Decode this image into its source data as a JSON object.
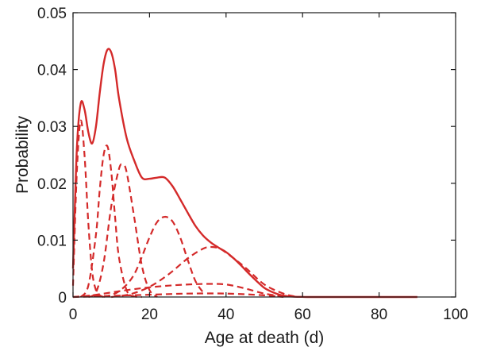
{
  "chart_data": {
    "type": "line",
    "xlabel": "Age at death (d)",
    "ylabel": "Probability",
    "xlim": [
      0,
      100
    ],
    "ylim": [
      0,
      0.05
    ],
    "xticks": [
      0,
      20,
      40,
      60,
      80,
      100
    ],
    "xtick_labels": [
      "0",
      "20",
      "40",
      "60",
      "80",
      "100"
    ],
    "yticks": [
      0,
      0.01,
      0.02,
      0.03,
      0.04,
      0.05
    ],
    "ytick_labels": [
      "0",
      "0.01",
      "0.02",
      "0.03",
      "0.04",
      "0.05"
    ],
    "grid": false,
    "line_color": "#d42a2a",
    "series": [
      {
        "style": "solid",
        "x": [
          0,
          1,
          2,
          3,
          4,
          5,
          6,
          7,
          8,
          9,
          10,
          11,
          12,
          14,
          16,
          18,
          20,
          22,
          24,
          26,
          28,
          30,
          32,
          34,
          36,
          38,
          40,
          42,
          44,
          46,
          48,
          50,
          52,
          54,
          56,
          58,
          60,
          62,
          65,
          70,
          80,
          90
        ],
        "y": [
          0.005,
          0.026,
          0.034,
          0.033,
          0.029,
          0.027,
          0.03,
          0.036,
          0.041,
          0.0435,
          0.043,
          0.04,
          0.035,
          0.028,
          0.024,
          0.021,
          0.0208,
          0.021,
          0.021,
          0.0195,
          0.0172,
          0.0148,
          0.0125,
          0.0108,
          0.0096,
          0.0087,
          0.0079,
          0.0068,
          0.0055,
          0.0041,
          0.0028,
          0.0016,
          0.0009,
          0.0004,
          0.00015,
          5e-05,
          2e-05,
          0.0,
          0.0,
          0.0,
          0.0,
          0.0
        ]
      },
      {
        "style": "dashed",
        "x": [
          0,
          1,
          2,
          3,
          4,
          5,
          6,
          7,
          8
        ],
        "y": [
          0.002,
          0.022,
          0.031,
          0.025,
          0.013,
          0.0045,
          0.0012,
          0.0003,
          0.0
        ]
      },
      {
        "style": "dashed",
        "x": [
          2,
          4,
          6,
          7,
          8,
          9,
          10,
          11,
          12,
          14,
          16,
          18
        ],
        "y": [
          0.0,
          0.002,
          0.011,
          0.019,
          0.025,
          0.0265,
          0.022,
          0.014,
          0.007,
          0.0012,
          0.0001,
          0.0
        ]
      },
      {
        "style": "dashed",
        "x": [
          4,
          6,
          8,
          10,
          12,
          13,
          14,
          16,
          18,
          20,
          22
        ],
        "y": [
          0.0,
          0.0008,
          0.006,
          0.016,
          0.0225,
          0.0232,
          0.022,
          0.014,
          0.0055,
          0.0012,
          0.0
        ]
      },
      {
        "style": "dashed",
        "x": [
          8,
          12,
          16,
          20,
          22,
          24,
          26,
          28,
          30,
          32,
          34
        ],
        "y": [
          0.0,
          0.001,
          0.004,
          0.0105,
          0.0132,
          0.0141,
          0.0133,
          0.0105,
          0.0065,
          0.0028,
          0.0008
        ]
      },
      {
        "style": "dashed",
        "x": [
          10,
          15,
          20,
          25,
          30,
          34,
          36,
          38,
          40,
          45,
          50,
          55,
          58
        ],
        "y": [
          0.0,
          0.0005,
          0.0018,
          0.004,
          0.0068,
          0.0085,
          0.0088,
          0.0086,
          0.0078,
          0.0052,
          0.0022,
          0.0006,
          0.0001
        ]
      },
      {
        "style": "dashed",
        "x": [
          0,
          5,
          10,
          15,
          20,
          25,
          30,
          35,
          40,
          45,
          50,
          55
        ],
        "y": [
          0.0,
          0.0003,
          0.0008,
          0.0013,
          0.0017,
          0.002,
          0.0022,
          0.0023,
          0.0022,
          0.0015,
          0.0006,
          0.0001
        ]
      },
      {
        "style": "dashed",
        "x": [
          0,
          10,
          20,
          30,
          40,
          50,
          55
        ],
        "y": [
          0.0,
          0.0002,
          0.0004,
          0.0006,
          0.0006,
          0.0003,
          0.0
        ]
      }
    ]
  }
}
